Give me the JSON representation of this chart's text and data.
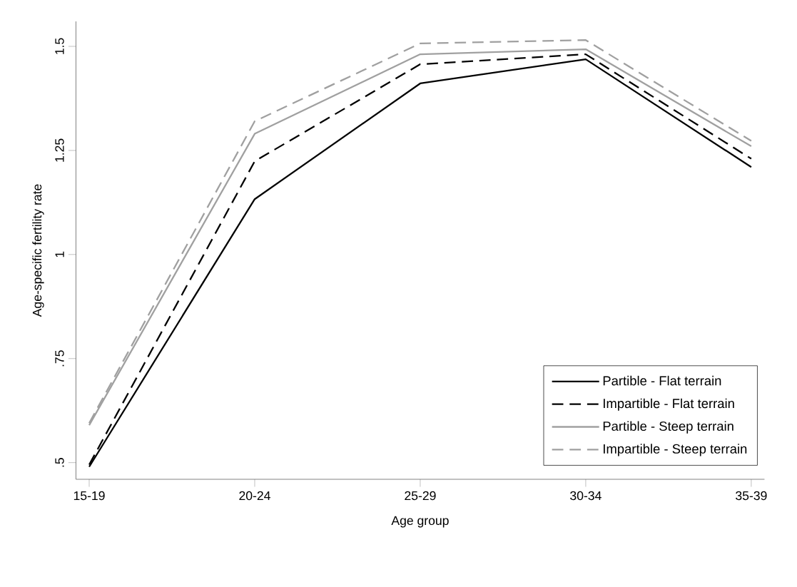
{
  "chart_data": {
    "type": "line",
    "xlabel": "Age group",
    "ylabel": "Age-specific fertility rate",
    "categories": [
      "15-19",
      "20-24",
      "25-29",
      "30-34",
      "35-39"
    ],
    "series": [
      {
        "name": "Partible - Flat terrain",
        "color": "#000000",
        "line_style": "solid",
        "values": [
          0.49,
          1.133,
          1.411,
          1.469,
          1.21
        ]
      },
      {
        "name": "Impartible - Flat terrain",
        "color": "#000000",
        "line_style": "dashed",
        "values": [
          0.495,
          1.224,
          1.457,
          1.481,
          1.23
        ]
      },
      {
        "name": "Partible - Steep terrain",
        "color": "#a0a0a0",
        "line_style": "solid",
        "values": [
          0.59,
          1.29,
          1.481,
          1.493,
          1.26
        ]
      },
      {
        "name": "Impartible - Steep terrain",
        "color": "#a0a0a0",
        "line_style": "dashed",
        "values": [
          0.595,
          1.32,
          1.507,
          1.515,
          1.273
        ]
      }
    ],
    "ylim": [
      0.46,
      1.56
    ],
    "yticks": [
      {
        "value": 0.5,
        "label": ".5"
      },
      {
        "value": 0.75,
        "label": ".75"
      },
      {
        "value": 1,
        "label": "1"
      },
      {
        "value": 1.25,
        "label": "1.25"
      },
      {
        "value": 1.5,
        "label": "1.5"
      }
    ],
    "grid": false,
    "legend": "bottom right",
    "marker": "none"
  }
}
